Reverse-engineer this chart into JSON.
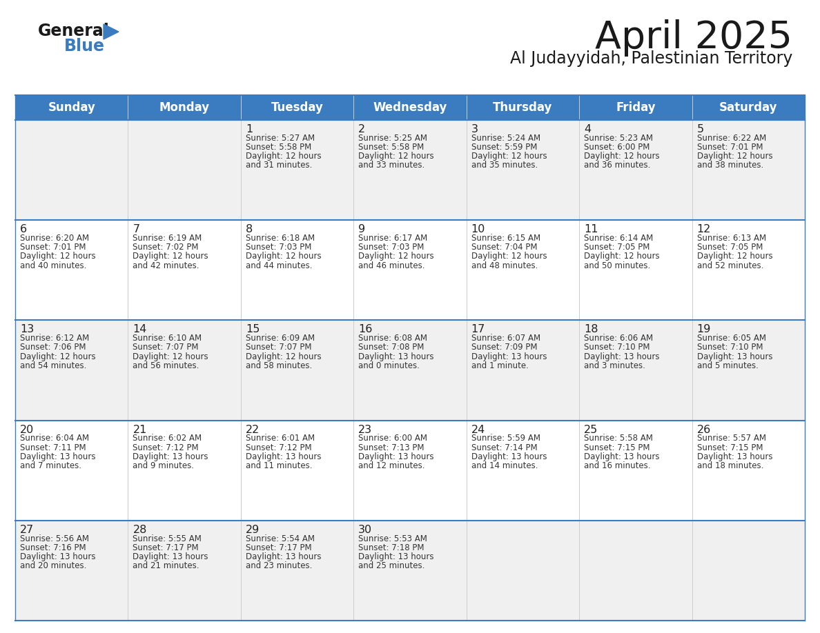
{
  "title": "April 2025",
  "subtitle": "Al Judayyidah, Palestinian Territory",
  "header_color": "#3a7cbf",
  "header_text_color": "#ffffff",
  "weekdays": [
    "Sunday",
    "Monday",
    "Tuesday",
    "Wednesday",
    "Thursday",
    "Friday",
    "Saturday"
  ],
  "bg_color": "#ffffff",
  "row_colors": [
    "#f0f0f0",
    "#ffffff",
    "#f0f0f0",
    "#ffffff",
    "#f0f0f0"
  ],
  "cell_text_color": "#333333",
  "day_num_color": "#222222",
  "line_color": "#3a7cbf",
  "vcol_color": "#cccccc",
  "days": [
    {
      "day": 1,
      "col": 2,
      "row": 0,
      "sunrise": "5:27 AM",
      "sunset": "5:58 PM",
      "daylight_h": "12 hours",
      "daylight_m": "and 31 minutes."
    },
    {
      "day": 2,
      "col": 3,
      "row": 0,
      "sunrise": "5:25 AM",
      "sunset": "5:58 PM",
      "daylight_h": "12 hours",
      "daylight_m": "and 33 minutes."
    },
    {
      "day": 3,
      "col": 4,
      "row": 0,
      "sunrise": "5:24 AM",
      "sunset": "5:59 PM",
      "daylight_h": "12 hours",
      "daylight_m": "and 35 minutes."
    },
    {
      "day": 4,
      "col": 5,
      "row": 0,
      "sunrise": "5:23 AM",
      "sunset": "6:00 PM",
      "daylight_h": "12 hours",
      "daylight_m": "and 36 minutes."
    },
    {
      "day": 5,
      "col": 6,
      "row": 0,
      "sunrise": "6:22 AM",
      "sunset": "7:01 PM",
      "daylight_h": "12 hours",
      "daylight_m": "and 38 minutes."
    },
    {
      "day": 6,
      "col": 0,
      "row": 1,
      "sunrise": "6:20 AM",
      "sunset": "7:01 PM",
      "daylight_h": "12 hours",
      "daylight_m": "and 40 minutes."
    },
    {
      "day": 7,
      "col": 1,
      "row": 1,
      "sunrise": "6:19 AM",
      "sunset": "7:02 PM",
      "daylight_h": "12 hours",
      "daylight_m": "and 42 minutes."
    },
    {
      "day": 8,
      "col": 2,
      "row": 1,
      "sunrise": "6:18 AM",
      "sunset": "7:03 PM",
      "daylight_h": "12 hours",
      "daylight_m": "and 44 minutes."
    },
    {
      "day": 9,
      "col": 3,
      "row": 1,
      "sunrise": "6:17 AM",
      "sunset": "7:03 PM",
      "daylight_h": "12 hours",
      "daylight_m": "and 46 minutes."
    },
    {
      "day": 10,
      "col": 4,
      "row": 1,
      "sunrise": "6:15 AM",
      "sunset": "7:04 PM",
      "daylight_h": "12 hours",
      "daylight_m": "and 48 minutes."
    },
    {
      "day": 11,
      "col": 5,
      "row": 1,
      "sunrise": "6:14 AM",
      "sunset": "7:05 PM",
      "daylight_h": "12 hours",
      "daylight_m": "and 50 minutes."
    },
    {
      "day": 12,
      "col": 6,
      "row": 1,
      "sunrise": "6:13 AM",
      "sunset": "7:05 PM",
      "daylight_h": "12 hours",
      "daylight_m": "and 52 minutes."
    },
    {
      "day": 13,
      "col": 0,
      "row": 2,
      "sunrise": "6:12 AM",
      "sunset": "7:06 PM",
      "daylight_h": "12 hours",
      "daylight_m": "and 54 minutes."
    },
    {
      "day": 14,
      "col": 1,
      "row": 2,
      "sunrise": "6:10 AM",
      "sunset": "7:07 PM",
      "daylight_h": "12 hours",
      "daylight_m": "and 56 minutes."
    },
    {
      "day": 15,
      "col": 2,
      "row": 2,
      "sunrise": "6:09 AM",
      "sunset": "7:07 PM",
      "daylight_h": "12 hours",
      "daylight_m": "and 58 minutes."
    },
    {
      "day": 16,
      "col": 3,
      "row": 2,
      "sunrise": "6:08 AM",
      "sunset": "7:08 PM",
      "daylight_h": "13 hours",
      "daylight_m": "and 0 minutes."
    },
    {
      "day": 17,
      "col": 4,
      "row": 2,
      "sunrise": "6:07 AM",
      "sunset": "7:09 PM",
      "daylight_h": "13 hours",
      "daylight_m": "and 1 minute."
    },
    {
      "day": 18,
      "col": 5,
      "row": 2,
      "sunrise": "6:06 AM",
      "sunset": "7:10 PM",
      "daylight_h": "13 hours",
      "daylight_m": "and 3 minutes."
    },
    {
      "day": 19,
      "col": 6,
      "row": 2,
      "sunrise": "6:05 AM",
      "sunset": "7:10 PM",
      "daylight_h": "13 hours",
      "daylight_m": "and 5 minutes."
    },
    {
      "day": 20,
      "col": 0,
      "row": 3,
      "sunrise": "6:04 AM",
      "sunset": "7:11 PM",
      "daylight_h": "13 hours",
      "daylight_m": "and 7 minutes."
    },
    {
      "day": 21,
      "col": 1,
      "row": 3,
      "sunrise": "6:02 AM",
      "sunset": "7:12 PM",
      "daylight_h": "13 hours",
      "daylight_m": "and 9 minutes."
    },
    {
      "day": 22,
      "col": 2,
      "row": 3,
      "sunrise": "6:01 AM",
      "sunset": "7:12 PM",
      "daylight_h": "13 hours",
      "daylight_m": "and 11 minutes."
    },
    {
      "day": 23,
      "col": 3,
      "row": 3,
      "sunrise": "6:00 AM",
      "sunset": "7:13 PM",
      "daylight_h": "13 hours",
      "daylight_m": "and 12 minutes."
    },
    {
      "day": 24,
      "col": 4,
      "row": 3,
      "sunrise": "5:59 AM",
      "sunset": "7:14 PM",
      "daylight_h": "13 hours",
      "daylight_m": "and 14 minutes."
    },
    {
      "day": 25,
      "col": 5,
      "row": 3,
      "sunrise": "5:58 AM",
      "sunset": "7:15 PM",
      "daylight_h": "13 hours",
      "daylight_m": "and 16 minutes."
    },
    {
      "day": 26,
      "col": 6,
      "row": 3,
      "sunrise": "5:57 AM",
      "sunset": "7:15 PM",
      "daylight_h": "13 hours",
      "daylight_m": "and 18 minutes."
    },
    {
      "day": 27,
      "col": 0,
      "row": 4,
      "sunrise": "5:56 AM",
      "sunset": "7:16 PM",
      "daylight_h": "13 hours",
      "daylight_m": "and 20 minutes."
    },
    {
      "day": 28,
      "col": 1,
      "row": 4,
      "sunrise": "5:55 AM",
      "sunset": "7:17 PM",
      "daylight_h": "13 hours",
      "daylight_m": "and 21 minutes."
    },
    {
      "day": 29,
      "col": 2,
      "row": 4,
      "sunrise": "5:54 AM",
      "sunset": "7:17 PM",
      "daylight_h": "13 hours",
      "daylight_m": "and 23 minutes."
    },
    {
      "day": 30,
      "col": 3,
      "row": 4,
      "sunrise": "5:53 AM",
      "sunset": "7:18 PM",
      "daylight_h": "13 hours",
      "daylight_m": "and 25 minutes."
    }
  ]
}
